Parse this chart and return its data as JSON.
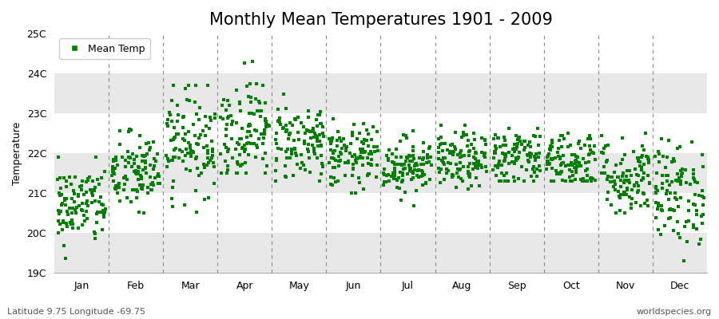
{
  "title": "Monthly Mean Temperatures 1901 - 2009",
  "ylabel": "Temperature",
  "xlabel_labels": [
    "Jan",
    "Feb",
    "Mar",
    "Apr",
    "May",
    "Jun",
    "Jul",
    "Aug",
    "Sep",
    "Oct",
    "Nov",
    "Dec"
  ],
  "ylim": [
    19,
    25
  ],
  "ytick_labels": [
    "19C",
    "20C",
    "21C",
    "22C",
    "23C",
    "24C",
    "25C"
  ],
  "ytick_values": [
    19,
    20,
    21,
    22,
    23,
    24,
    25
  ],
  "marker_color": "#008000",
  "marker": "s",
  "marker_size": 2.5,
  "legend_label": "Mean Temp",
  "background_color": "#FFFFFF",
  "band_colors_even": "#E8E8E8",
  "band_colors_odd": "#FFFFFF",
  "subtitle": "Latitude 9.75 Longitude -69.75",
  "watermark": "worldspecies.org",
  "title_fontsize": 15,
  "seed": 42,
  "monthly_data": {
    "Jan": {
      "mean": 20.7,
      "std": 0.5,
      "min": 19.0,
      "max": 21.9
    },
    "Feb": {
      "mean": 21.5,
      "std": 0.5,
      "min": 20.5,
      "max": 23.1
    },
    "Mar": {
      "mean": 22.3,
      "std": 0.65,
      "min": 20.1,
      "max": 23.7
    },
    "Apr": {
      "mean": 22.6,
      "std": 0.65,
      "min": 21.5,
      "max": 24.4
    },
    "May": {
      "mean": 22.3,
      "std": 0.5,
      "min": 21.3,
      "max": 23.7
    },
    "Jun": {
      "mean": 21.9,
      "std": 0.4,
      "min": 21.0,
      "max": 23.0
    },
    "Jul": {
      "mean": 21.7,
      "std": 0.35,
      "min": 20.5,
      "max": 22.6
    },
    "Aug": {
      "mean": 21.8,
      "std": 0.35,
      "min": 20.8,
      "max": 22.8
    },
    "Sep": {
      "mean": 21.9,
      "std": 0.4,
      "min": 21.3,
      "max": 23.1
    },
    "Oct": {
      "mean": 21.8,
      "std": 0.4,
      "min": 21.3,
      "max": 23.2
    },
    "Nov": {
      "mean": 21.4,
      "std": 0.5,
      "min": 20.5,
      "max": 23.2
    },
    "Dec": {
      "mean": 21.0,
      "std": 0.65,
      "min": 19.3,
      "max": 22.6
    }
  },
  "n_years": 109
}
